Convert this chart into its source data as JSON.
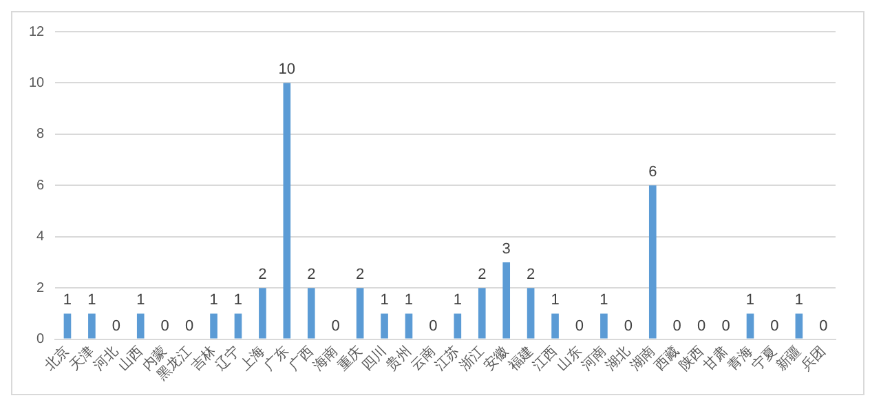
{
  "chart_data": {
    "type": "bar",
    "categories": [
      "北京",
      "天津",
      "河北",
      "山西",
      "内蒙",
      "黑龙江",
      "吉林",
      "辽宁",
      "上海",
      "广东",
      "广西",
      "海南",
      "重庆",
      "四川",
      "贵州",
      "云南",
      "江苏",
      "浙江",
      "安徽",
      "福建",
      "江西",
      "山东",
      "河南",
      "湖北",
      "湖南",
      "西藏",
      "陕西",
      "甘肃",
      "青海",
      "宁夏",
      "新疆",
      "兵团"
    ],
    "values": [
      1,
      1,
      0,
      1,
      0,
      0,
      1,
      1,
      2,
      10,
      2,
      0,
      2,
      1,
      1,
      0,
      1,
      2,
      3,
      2,
      1,
      0,
      1,
      0,
      6,
      0,
      0,
      0,
      1,
      0,
      1,
      0
    ],
    "color": "#5b9bd5",
    "ylim": [
      0,
      12
    ],
    "yticks": [
      0,
      2,
      4,
      6,
      8,
      10,
      12
    ],
    "grid": "y",
    "data_labels": true
  }
}
